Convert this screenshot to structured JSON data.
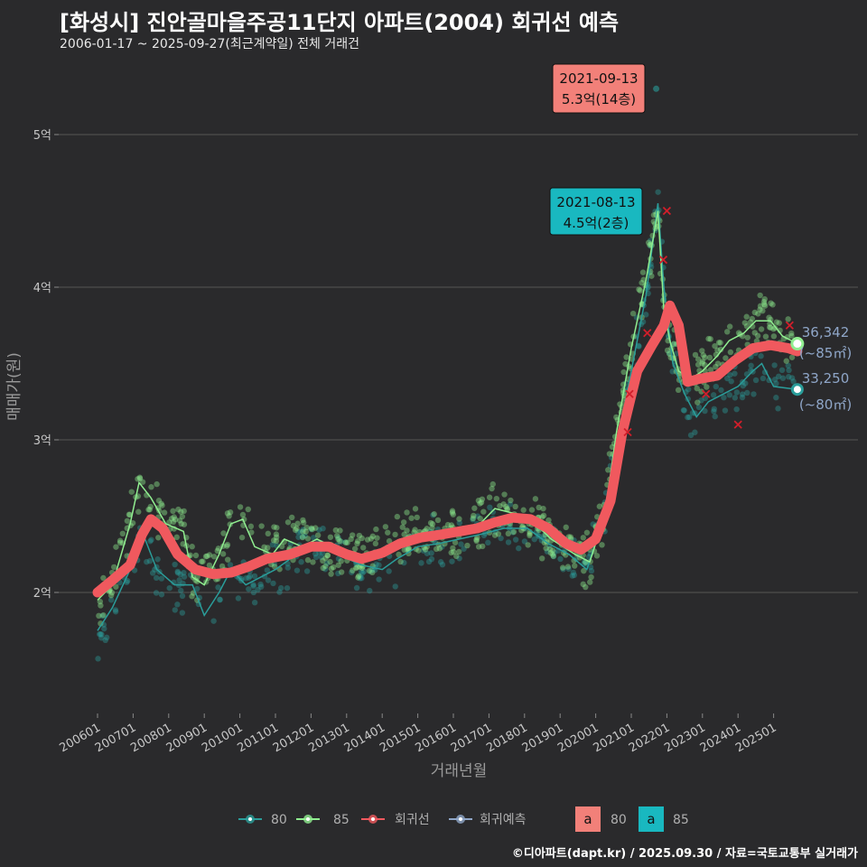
{
  "header": {
    "title": "[화성시] 진안골마을주공11단지 아파트(2004) 회귀선 예측",
    "subtitle": "2006-01-17 ~ 2025-09-27(최근계약일) 전체 거래건"
  },
  "footer": {
    "credit": "©디아파트(dapt.kr) / 2025.09.30 / 자료=국토교통부 실거래가"
  },
  "colors": {
    "background": "#2a2a2c",
    "grid": "#555555",
    "area80": "#2a9d9a",
    "area85": "#90ee90",
    "regression": "#f0595e",
    "forecast": "#8fa6c8",
    "ann_red_bg": "#f28079",
    "ann_teal_bg": "#19b8c0"
  },
  "chart_data": {
    "type": "scatter",
    "xlabel": "거래년월",
    "ylabel": "매매가(원)",
    "ylim": [
      1.3,
      5.5
    ],
    "x_range": [
      "2006-01",
      "2025-12"
    ],
    "y_ticks": [
      {
        "value": 2,
        "label": "2억"
      },
      {
        "value": 3,
        "label": "3억"
      },
      {
        "value": 4,
        "label": "4억"
      },
      {
        "value": 5,
        "label": "5억"
      }
    ],
    "x_ticks": [
      "200601",
      "200701",
      "200801",
      "200901",
      "201001",
      "201101",
      "201201",
      "201301",
      "201401",
      "201501",
      "201601",
      "201701",
      "201801",
      "201901",
      "202001",
      "202101",
      "202201",
      "202301",
      "202401",
      "202501"
    ],
    "series": [
      {
        "name": "85",
        "color": "#90ee90",
        "moving_average": [
          [
            "2006-01",
            1.95
          ],
          [
            "2006-06",
            2.05
          ],
          [
            "2006-12",
            2.45
          ],
          [
            "2007-03",
            2.72
          ],
          [
            "2007-07",
            2.62
          ],
          [
            "2007-12",
            2.45
          ],
          [
            "2008-06",
            2.4
          ],
          [
            "2008-09",
            2.1
          ],
          [
            "2009-01",
            2.05
          ],
          [
            "2009-06",
            2.25
          ],
          [
            "2009-10",
            2.45
          ],
          [
            "2010-02",
            2.48
          ],
          [
            "2010-06",
            2.3
          ],
          [
            "2010-12",
            2.25
          ],
          [
            "2011-04",
            2.35
          ],
          [
            "2011-10",
            2.3
          ],
          [
            "2012-03",
            2.35
          ],
          [
            "2012-10",
            2.28
          ],
          [
            "2013-06",
            2.22
          ],
          [
            "2014-01",
            2.28
          ],
          [
            "2014-07",
            2.35
          ],
          [
            "2015-03",
            2.38
          ],
          [
            "2016-01",
            2.42
          ],
          [
            "2016-10",
            2.45
          ],
          [
            "2017-03",
            2.55
          ],
          [
            "2017-09",
            2.52
          ],
          [
            "2018-03",
            2.48
          ],
          [
            "2018-10",
            2.35
          ],
          [
            "2019-06",
            2.25
          ],
          [
            "2019-11",
            2.2
          ],
          [
            "2020-04",
            2.5
          ],
          [
            "2020-08",
            3.05
          ],
          [
            "2021-01",
            3.6
          ],
          [
            "2021-06",
            4.05
          ],
          [
            "2021-10",
            4.5
          ],
          [
            "2021-12",
            3.85
          ],
          [
            "2022-02",
            3.65
          ],
          [
            "2022-05",
            3.45
          ],
          [
            "2022-09",
            3.4
          ],
          [
            "2023-01",
            3.45
          ],
          [
            "2023-06",
            3.55
          ],
          [
            "2023-10",
            3.65
          ],
          [
            "2024-03",
            3.7
          ],
          [
            "2024-07",
            3.78
          ],
          [
            "2024-12",
            3.78
          ],
          [
            "2025-04",
            3.68
          ],
          [
            "2025-09",
            3.63
          ]
        ],
        "last_value": "36,342",
        "last_area": "(~85㎡)"
      },
      {
        "name": "80",
        "color": "#2a9d9a",
        "moving_average": [
          [
            "2006-01",
            1.75
          ],
          [
            "2006-06",
            1.9
          ],
          [
            "2006-12",
            2.15
          ],
          [
            "2007-04",
            2.4
          ],
          [
            "2007-09",
            2.15
          ],
          [
            "2008-03",
            2.05
          ],
          [
            "2008-09",
            2.05
          ],
          [
            "2009-01",
            1.85
          ],
          [
            "2009-06",
            2.0
          ],
          [
            "2009-10",
            2.15
          ],
          [
            "2010-03",
            2.05
          ],
          [
            "2010-08",
            2.1
          ],
          [
            "2011-01",
            2.15
          ],
          [
            "2011-06",
            2.22
          ],
          [
            "2012-03",
            2.3
          ],
          [
            "2012-10",
            2.25
          ],
          [
            "2013-06",
            2.18
          ],
          [
            "2014-01",
            2.15
          ],
          [
            "2014-06",
            2.22
          ],
          [
            "2015-01",
            2.3
          ],
          [
            "2015-08",
            2.32
          ],
          [
            "2016-03",
            2.35
          ],
          [
            "2016-10",
            2.38
          ],
          [
            "2017-06",
            2.42
          ],
          [
            "2018-02",
            2.42
          ],
          [
            "2018-09",
            2.32
          ],
          [
            "2019-04",
            2.25
          ],
          [
            "2019-10",
            2.15
          ],
          [
            "2020-03",
            2.45
          ],
          [
            "2020-08",
            2.95
          ],
          [
            "2021-01",
            3.45
          ],
          [
            "2021-06",
            3.95
          ],
          [
            "2021-10",
            4.55
          ],
          [
            "2021-12",
            4.0
          ],
          [
            "2022-03",
            3.5
          ],
          [
            "2022-07",
            3.3
          ],
          [
            "2022-11",
            3.15
          ],
          [
            "2023-03",
            3.25
          ],
          [
            "2023-08",
            3.3
          ],
          [
            "2024-01",
            3.35
          ],
          [
            "2024-06",
            3.45
          ],
          [
            "2024-09",
            3.5
          ],
          [
            "2025-01",
            3.35
          ],
          [
            "2025-09",
            3.33
          ]
        ],
        "last_value": "33,250",
        "last_area": "(~80㎡)"
      },
      {
        "name": "회귀선",
        "color": "#f0595e",
        "values": [
          [
            "2006-01",
            2.0
          ],
          [
            "2006-06",
            2.08
          ],
          [
            "2006-12",
            2.18
          ],
          [
            "2007-04",
            2.38
          ],
          [
            "2007-07",
            2.48
          ],
          [
            "2007-11",
            2.42
          ],
          [
            "2008-04",
            2.25
          ],
          [
            "2008-10",
            2.15
          ],
          [
            "2009-04",
            2.12
          ],
          [
            "2009-10",
            2.13
          ],
          [
            "2010-04",
            2.17
          ],
          [
            "2010-10",
            2.22
          ],
          [
            "2011-06",
            2.25
          ],
          [
            "2012-01",
            2.3
          ],
          [
            "2012-07",
            2.3
          ],
          [
            "2013-01",
            2.25
          ],
          [
            "2013-06",
            2.22
          ],
          [
            "2014-01",
            2.26
          ],
          [
            "2014-07",
            2.32
          ],
          [
            "2015-02",
            2.36
          ],
          [
            "2015-09",
            2.38
          ],
          [
            "2016-03",
            2.4
          ],
          [
            "2016-09",
            2.42
          ],
          [
            "2017-03",
            2.46
          ],
          [
            "2017-09",
            2.49
          ],
          [
            "2018-03",
            2.48
          ],
          [
            "2018-09",
            2.42
          ],
          [
            "2019-03",
            2.32
          ],
          [
            "2019-08",
            2.28
          ],
          [
            "2020-01",
            2.35
          ],
          [
            "2020-06",
            2.6
          ],
          [
            "2020-10",
            3.05
          ],
          [
            "2021-03",
            3.45
          ],
          [
            "2021-08",
            3.62
          ],
          [
            "2021-12",
            3.75
          ],
          [
            "2022-02",
            3.88
          ],
          [
            "2022-05",
            3.75
          ],
          [
            "2022-08",
            3.38
          ],
          [
            "2022-12",
            3.4
          ],
          [
            "2023-06",
            3.42
          ],
          [
            "2023-12",
            3.52
          ],
          [
            "2024-06",
            3.6
          ],
          [
            "2024-12",
            3.62
          ],
          [
            "2025-06",
            3.6
          ],
          [
            "2025-09",
            3.58
          ]
        ]
      },
      {
        "name": "회귀예측",
        "color": "#8fa6c8",
        "values": []
      }
    ],
    "annotations": [
      {
        "date": "2021-09-13",
        "price": "5.3억(14층)",
        "value": 5.3,
        "style": "red"
      },
      {
        "date": "2021-08-13",
        "price": "4.5억(2층)",
        "value": 4.5,
        "style": "teal"
      }
    ],
    "legend": {
      "placement": "bottom",
      "series_items": [
        {
          "label": "80",
          "color": "#2a9d9a"
        },
        {
          "label": "85",
          "color": "#90ee90"
        },
        {
          "label": "회귀선",
          "color": "#f0595e"
        },
        {
          "label": "회귀예측",
          "color": "#8fa6c8"
        }
      ],
      "annotation_items": [
        {
          "glyph": "a",
          "label": "80",
          "color": "#f28079"
        },
        {
          "glyph": "a",
          "label": "85",
          "color": "#19b8c0"
        }
      ]
    }
  }
}
